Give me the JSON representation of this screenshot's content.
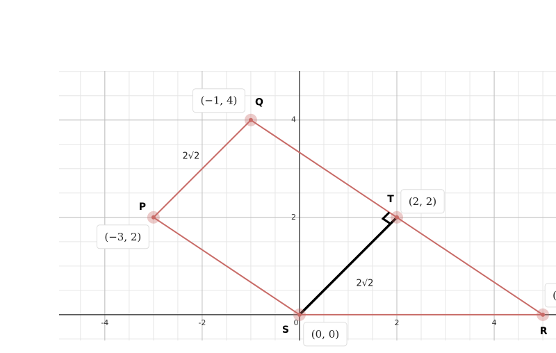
{
  "chart_data": {
    "type": "polygon",
    "xlim": [
      -4.94,
      5.27
    ],
    "ylim": [
      -0.53,
      5.01
    ],
    "xticks": [
      -4,
      -2,
      0,
      2,
      4
    ],
    "yticks": [
      2,
      4
    ],
    "grid": true,
    "points": [
      {
        "name": "P",
        "x": -3,
        "y": 2,
        "label": "(−3, 2)"
      },
      {
        "name": "Q",
        "x": -1,
        "y": 4,
        "label": "(−1, 4)"
      },
      {
        "name": "R",
        "x": 5,
        "y": 0,
        "label": "("
      },
      {
        "name": "S",
        "x": 0,
        "y": 0,
        "label": "(0, 0)"
      },
      {
        "name": "T",
        "x": 2,
        "y": 2,
        "label": "(2, 2)"
      }
    ],
    "polygon_color": "#c86b67",
    "segment_color": "#000000",
    "edge_labels": [
      "2√2",
      "2√2"
    ]
  }
}
